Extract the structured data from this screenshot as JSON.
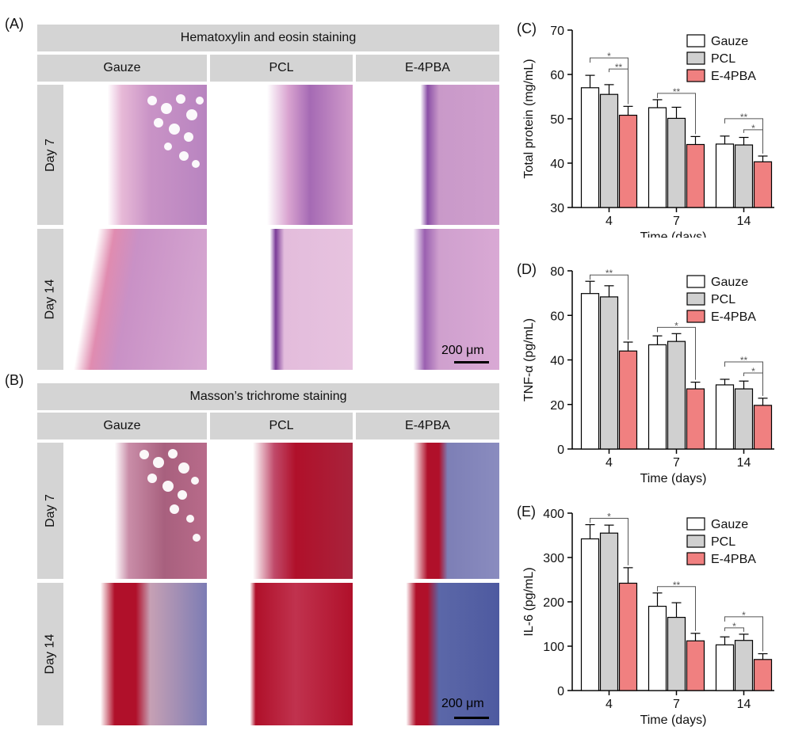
{
  "panel_A": {
    "letter": "(A)",
    "title": "Hematoxylin and eosin staining",
    "columns": [
      "Gauze",
      "PCL",
      "E-4PBA"
    ],
    "rows": [
      "Day 7",
      "Day 14"
    ],
    "scale_bar": "200 μm"
  },
  "panel_B": {
    "letter": "(B)",
    "title": "Masson’s trichrome staining",
    "columns": [
      "Gauze",
      "PCL",
      "E-4PBA"
    ],
    "rows": [
      "Day 7",
      "Day 14"
    ],
    "scale_bar": "200 μm"
  },
  "colors": {
    "he_pink": "#e9b7d8",
    "he_purple": "#8a4fa6",
    "masson_red": "#b0102a",
    "masson_blue": "#5b67a8",
    "gauze_bar": "#ffffff",
    "pcl_bar": "#d0d0d0",
    "e4pba_bar": "#f08080"
  },
  "chart_data": [
    {
      "type": "bar",
      "letter": "(C)",
      "categories": [
        "4",
        "7",
        "14"
      ],
      "series": [
        {
          "name": "Gauze",
          "values": [
            57,
            52.5,
            44.3
          ],
          "errors": [
            2.8,
            1.8,
            1.8
          ]
        },
        {
          "name": "PCL",
          "values": [
            55.5,
            50.1,
            44.1
          ],
          "errors": [
            2.2,
            2.5,
            1.7
          ]
        },
        {
          "name": "E-4PBA",
          "values": [
            50.8,
            44.2,
            40.3
          ],
          "errors": [
            2.0,
            1.8,
            1.3
          ]
        }
      ],
      "xlabel": "Time (days)",
      "ylabel": "Total protein (mg/mL)",
      "ylim": [
        30,
        70
      ],
      "yticks": [
        30,
        40,
        50,
        60,
        70
      ],
      "significance": [
        {
          "group": 0,
          "from": 0,
          "to": 2,
          "label": "*"
        },
        {
          "group": 0,
          "from": 1,
          "to": 2,
          "label": "**"
        },
        {
          "group": 1,
          "from": 0,
          "to": 2,
          "label": "**"
        },
        {
          "group": 2,
          "from": 0,
          "to": 2,
          "label": "**"
        },
        {
          "group": 2,
          "from": 1,
          "to": 2,
          "label": "*"
        }
      ],
      "legend": "top-right"
    },
    {
      "type": "bar",
      "letter": "(D)",
      "categories": [
        "4",
        "7",
        "14"
      ],
      "series": [
        {
          "name": "Gauze",
          "values": [
            69.8,
            46.8,
            28.8
          ],
          "errors": [
            5.5,
            4.0,
            2.5
          ]
        },
        {
          "name": "PCL",
          "values": [
            68.3,
            48.3,
            27.0
          ],
          "errors": [
            5.0,
            3.5,
            3.5
          ]
        },
        {
          "name": "E-4PBA",
          "values": [
            44.0,
            27.0,
            19.6
          ],
          "errors": [
            4.0,
            3.0,
            3.2
          ]
        }
      ],
      "xlabel": "Time (days)",
      "ylabel": "TNF-α (pg/mL)",
      "ylim": [
        0,
        80
      ],
      "yticks": [
        0,
        20,
        40,
        60,
        80
      ],
      "significance": [
        {
          "group": 0,
          "from": 0,
          "to": 2,
          "label": "**"
        },
        {
          "group": 1,
          "from": 0,
          "to": 2,
          "label": "*"
        },
        {
          "group": 2,
          "from": 0,
          "to": 2,
          "label": "**"
        },
        {
          "group": 2,
          "from": 1,
          "to": 2,
          "label": "*"
        }
      ],
      "legend": "top-right"
    },
    {
      "type": "bar",
      "letter": "(E)",
      "categories": [
        "4",
        "7",
        "14"
      ],
      "series": [
        {
          "name": "Gauze",
          "values": [
            342,
            190,
            103
          ],
          "errors": [
            32,
            30,
            18
          ]
        },
        {
          "name": "PCL",
          "values": [
            355,
            165,
            113
          ],
          "errors": [
            18,
            33,
            14
          ]
        },
        {
          "name": "E-4PBA",
          "values": [
            242,
            112,
            70
          ],
          "errors": [
            35,
            17,
            13
          ]
        }
      ],
      "xlabel": "Time (days)",
      "ylabel": "IL-6 (pg/mL)",
      "ylim": [
        0,
        400
      ],
      "yticks": [
        0,
        100,
        200,
        300,
        400
      ],
      "significance": [
        {
          "group": 0,
          "from": 0,
          "to": 2,
          "label": "*"
        },
        {
          "group": 1,
          "from": 0,
          "to": 2,
          "label": "**"
        },
        {
          "group": 2,
          "from": 0,
          "to": 1,
          "label": "*"
        },
        {
          "group": 2,
          "from": 0,
          "to": 2,
          "label": "*"
        }
      ],
      "legend": "top-right"
    }
  ]
}
